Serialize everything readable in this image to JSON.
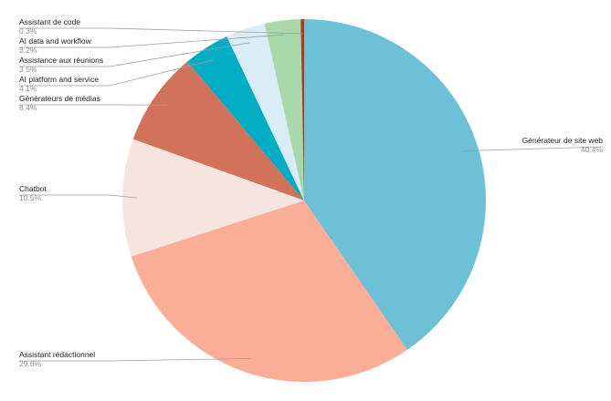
{
  "chart_data": {
    "type": "pie",
    "title": "",
    "start_angle_deg": 0,
    "direction": "clockwise",
    "slices": [
      {
        "label": "Générateur de site web",
        "value": 40.4,
        "pct_label": "40.4%",
        "color": "#6cc1d6"
      },
      {
        "label": "Assistant rédactionnel",
        "value": 29.6,
        "pct_label": "29.6%",
        "color": "#fbad97"
      },
      {
        "label": "Chatbot",
        "value": 10.5,
        "pct_label": "10.5%",
        "color": "#f6e4de"
      },
      {
        "label": "Générateurs de médias",
        "value": 8.4,
        "pct_label": "8.4%",
        "color": "#d2725a"
      },
      {
        "label": "AI platform and service",
        "value": 4.1,
        "pct_label": "4.1%",
        "color": "#00adc4"
      },
      {
        "label": "Assistance aux réunions",
        "value": 3.5,
        "pct_label": "3.5%",
        "color": "#d8edf6"
      },
      {
        "label": "AI data and workflow",
        "value": 3.2,
        "pct_label": "3.2%",
        "color": "#a9d8ab"
      },
      {
        "label": "Assistant de code",
        "value": 0.3,
        "pct_label": "0.3%",
        "color": "#b03a12"
      }
    ],
    "legend": "none (callout labels)"
  }
}
